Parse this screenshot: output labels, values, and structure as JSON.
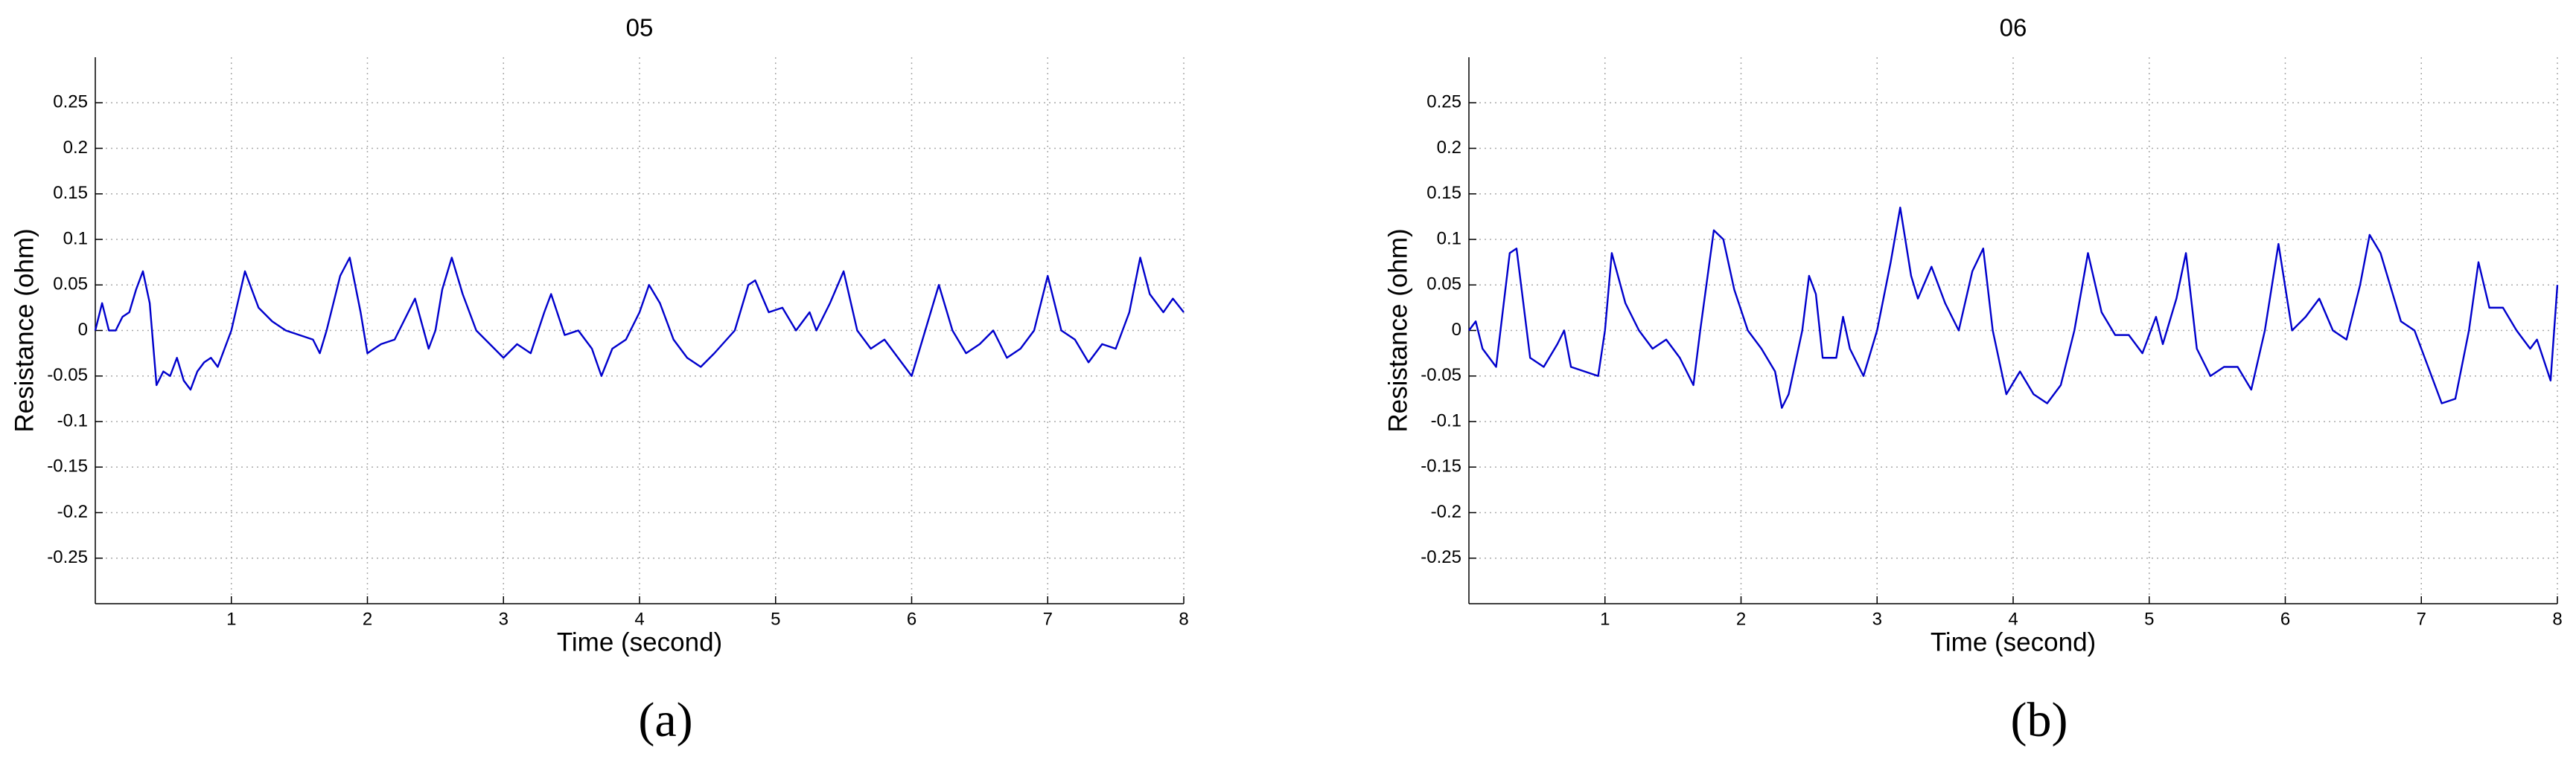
{
  "chart_data": [
    {
      "type": "line",
      "title": "05",
      "xlabel": "Time (second)",
      "ylabel": "Resistance (ohm)",
      "panel_label": "(a)",
      "color": "#0000cc",
      "grid": true,
      "xlim": [
        0,
        8
      ],
      "xticks": [
        1,
        2,
        3,
        4,
        5,
        6,
        7,
        8
      ],
      "ylim": [
        -0.3,
        0.3
      ],
      "yticks": [
        -0.25,
        -0.2,
        -0.15,
        -0.1,
        -0.05,
        0,
        0.05,
        0.1,
        0.15,
        0.2,
        0.25
      ],
      "x": [
        0.0,
        0.05,
        0.1,
        0.15,
        0.2,
        0.25,
        0.3,
        0.35,
        0.4,
        0.45,
        0.5,
        0.55,
        0.6,
        0.65,
        0.7,
        0.75,
        0.8,
        0.85,
        0.9,
        0.95,
        1.0,
        1.1,
        1.2,
        1.3,
        1.4,
        1.5,
        1.6,
        1.65,
        1.7,
        1.8,
        1.87,
        1.95,
        2.0,
        2.1,
        2.2,
        2.3,
        2.35,
        2.45,
        2.5,
        2.55,
        2.62,
        2.7,
        2.8,
        2.9,
        3.0,
        3.1,
        3.2,
        3.3,
        3.35,
        3.45,
        3.55,
        3.65,
        3.72,
        3.8,
        3.9,
        4.0,
        4.07,
        4.15,
        4.25,
        4.35,
        4.45,
        4.55,
        4.7,
        4.8,
        4.85,
        4.95,
        5.05,
        5.15,
        5.25,
        5.3,
        5.4,
        5.5,
        5.6,
        5.7,
        5.8,
        5.9,
        6.0,
        6.1,
        6.2,
        6.3,
        6.4,
        6.5,
        6.6,
        6.7,
        6.8,
        6.9,
        7.0,
        7.1,
        7.2,
        7.3,
        7.4,
        7.5,
        7.6,
        7.68,
        7.75,
        7.85,
        7.92,
        8.0
      ],
      "values": [
        0.0,
        0.03,
        0.0,
        0.0,
        0.015,
        0.02,
        0.045,
        0.065,
        0.03,
        -0.06,
        -0.045,
        -0.05,
        -0.03,
        -0.055,
        -0.065,
        -0.045,
        -0.035,
        -0.03,
        -0.04,
        -0.02,
        0.0,
        0.065,
        0.025,
        0.01,
        0.0,
        -0.005,
        -0.01,
        -0.025,
        0.0,
        0.06,
        0.08,
        0.02,
        -0.025,
        -0.015,
        -0.01,
        0.02,
        0.035,
        -0.02,
        0.0,
        0.045,
        0.08,
        0.04,
        0.0,
        -0.015,
        -0.03,
        -0.015,
        -0.025,
        0.02,
        0.04,
        -0.005,
        0.0,
        -0.02,
        -0.05,
        -0.02,
        -0.01,
        0.02,
        0.05,
        0.03,
        -0.01,
        -0.03,
        -0.04,
        -0.025,
        0.0,
        0.05,
        0.055,
        0.02,
        0.025,
        0.0,
        0.02,
        0.0,
        0.03,
        0.065,
        0.0,
        -0.02,
        -0.01,
        -0.03,
        -0.05,
        0.0,
        0.05,
        0.0,
        -0.025,
        -0.015,
        0.0,
        -0.03,
        -0.02,
        0.0,
        0.06,
        0.0,
        -0.01,
        -0.035,
        -0.015,
        -0.02,
        0.02,
        0.08,
        0.04,
        0.02,
        0.035,
        0.02
      ]
    },
    {
      "type": "line",
      "title": "06",
      "xlabel": "Time (second)",
      "ylabel": "Resistance (ohm)",
      "panel_label": "(b)",
      "color": "#0000cc",
      "grid": true,
      "xlim": [
        0,
        8
      ],
      "xticks": [
        1,
        2,
        3,
        4,
        5,
        6,
        7,
        8
      ],
      "ylim": [
        -0.3,
        0.3
      ],
      "yticks": [
        -0.25,
        -0.2,
        -0.15,
        -0.1,
        -0.05,
        0,
        0.05,
        0.1,
        0.15,
        0.2,
        0.25
      ],
      "x": [
        0.0,
        0.05,
        0.1,
        0.2,
        0.3,
        0.35,
        0.45,
        0.55,
        0.65,
        0.7,
        0.75,
        0.85,
        0.95,
        1.0,
        1.05,
        1.15,
        1.25,
        1.35,
        1.45,
        1.55,
        1.65,
        1.7,
        1.8,
        1.87,
        1.95,
        2.05,
        2.15,
        2.25,
        2.3,
        2.35,
        2.45,
        2.5,
        2.55,
        2.6,
        2.7,
        2.75,
        2.8,
        2.9,
        3.0,
        3.1,
        3.17,
        3.25,
        3.3,
        3.4,
        3.5,
        3.6,
        3.7,
        3.78,
        3.85,
        3.95,
        4.05,
        4.15,
        4.25,
        4.35,
        4.45,
        4.55,
        4.65,
        4.75,
        4.85,
        4.95,
        5.05,
        5.1,
        5.2,
        5.27,
        5.35,
        5.45,
        5.55,
        5.65,
        5.75,
        5.85,
        5.95,
        6.05,
        6.15,
        6.25,
        6.35,
        6.45,
        6.55,
        6.62,
        6.7,
        6.8,
        6.85,
        6.95,
        7.05,
        7.15,
        7.25,
        7.35,
        7.42,
        7.5,
        7.6,
        7.7,
        7.8,
        7.85,
        7.95,
        8.0
      ],
      "values": [
        0.0,
        0.01,
        -0.02,
        -0.04,
        0.085,
        0.09,
        -0.03,
        -0.04,
        -0.015,
        0.0,
        -0.04,
        -0.045,
        -0.05,
        0.0,
        0.085,
        0.03,
        0.0,
        -0.02,
        -0.01,
        -0.03,
        -0.06,
        0.0,
        0.11,
        0.1,
        0.045,
        0.0,
        -0.02,
        -0.045,
        -0.085,
        -0.07,
        0.0,
        0.06,
        0.04,
        -0.03,
        -0.03,
        0.015,
        -0.02,
        -0.05,
        0.0,
        0.075,
        0.135,
        0.06,
        0.035,
        0.07,
        0.03,
        0.0,
        0.065,
        0.09,
        0.0,
        -0.07,
        -0.045,
        -0.07,
        -0.08,
        -0.06,
        0.0,
        0.085,
        0.02,
        -0.005,
        -0.005,
        -0.025,
        0.015,
        -0.015,
        0.035,
        0.085,
        -0.02,
        -0.05,
        -0.04,
        -0.04,
        -0.065,
        0.0,
        0.095,
        0.0,
        0.015,
        0.035,
        0.0,
        -0.01,
        0.05,
        0.105,
        0.085,
        0.035,
        0.01,
        0.0,
        -0.04,
        -0.08,
        -0.075,
        0.0,
        0.075,
        0.025,
        0.025,
        0.0,
        -0.02,
        -0.01,
        -0.055,
        0.05
      ]
    }
  ]
}
